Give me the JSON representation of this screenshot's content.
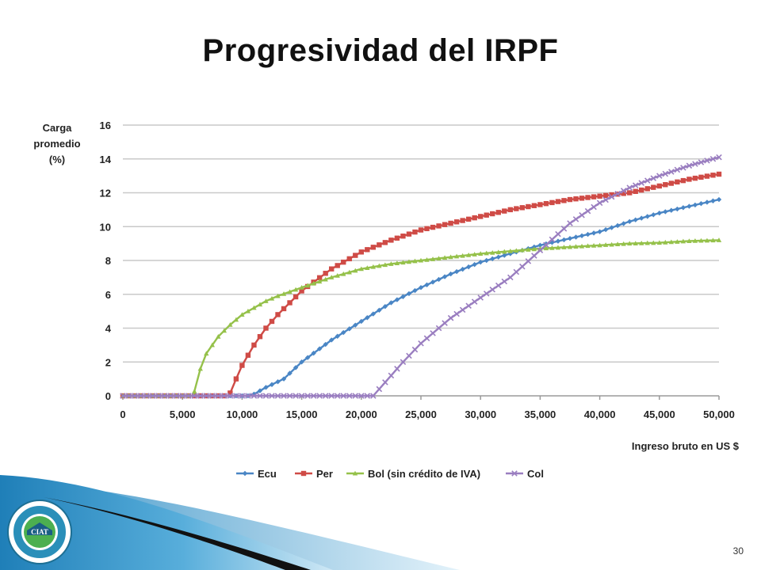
{
  "slide": {
    "title": "Progresividad del IRPF",
    "page_number": "30"
  },
  "chart_data": {
    "type": "line",
    "title": "",
    "ylabel_lines": [
      "Carga",
      "promedio",
      "(%)"
    ],
    "xlabel": "Ingreso bruto en US $",
    "xlim": [
      0,
      50000
    ],
    "ylim": [
      0,
      16
    ],
    "x_ticks": [
      0,
      5000,
      10000,
      15000,
      20000,
      25000,
      30000,
      35000,
      40000,
      45000,
      50000
    ],
    "x_tick_labels": [
      "0",
      "5,000",
      "10,000",
      "15,000",
      "20,000",
      "25,000",
      "30,000",
      "35,000",
      "40,000",
      "45,000",
      "50,000"
    ],
    "y_ticks": [
      0,
      2,
      4,
      6,
      8,
      10,
      12,
      14,
      16
    ],
    "y_tick_labels": [
      "0",
      "2",
      "4",
      "6",
      "8",
      "10",
      "12",
      "14",
      "16"
    ],
    "grid": true,
    "legend_position": "bottom",
    "series": [
      {
        "name": "Ecu",
        "color": "#4a86c5",
        "marker": "diamond",
        "x": [
          0,
          10500,
          11000,
          12000,
          13500,
          15000,
          17500,
          20000,
          22500,
          25000,
          27500,
          30000,
          32500,
          35000,
          37500,
          40000,
          42500,
          45000,
          47500,
          50000
        ],
        "y": [
          0,
          0,
          0.1,
          0.5,
          1.0,
          2.0,
          3.3,
          4.4,
          5.5,
          6.4,
          7.2,
          7.9,
          8.4,
          8.9,
          9.3,
          9.7,
          10.3,
          10.8,
          11.2,
          11.6
        ]
      },
      {
        "name": "Per",
        "color": "#cf4b46",
        "marker": "square",
        "x": [
          0,
          8900,
          9500,
          10000,
          11000,
          12000,
          13000,
          14000,
          15000,
          17500,
          20000,
          22500,
          25000,
          27500,
          30000,
          32500,
          35000,
          37500,
          40000,
          42500,
          45000,
          47500,
          50000
        ],
        "y": [
          0,
          0,
          1.0,
          1.8,
          3.0,
          4.0,
          4.8,
          5.5,
          6.2,
          7.5,
          8.5,
          9.2,
          9.8,
          10.2,
          10.6,
          11.0,
          11.3,
          11.6,
          11.8,
          12.0,
          12.4,
          12.8,
          13.1
        ]
      },
      {
        "name": "Bol (sin crédito de IVA)",
        "color": "#95c14a",
        "marker": "triangle",
        "x": [
          0,
          5900,
          6500,
          7000,
          8000,
          9000,
          10000,
          11000,
          12000,
          13000,
          15000,
          17500,
          20000,
          22500,
          25000,
          27500,
          30000,
          32500,
          35000,
          37500,
          40000,
          42500,
          45000,
          47500,
          50000
        ],
        "y": [
          0,
          0,
          1.6,
          2.5,
          3.5,
          4.2,
          4.8,
          5.2,
          5.6,
          5.9,
          6.4,
          7.0,
          7.5,
          7.8,
          8.0,
          8.2,
          8.4,
          8.55,
          8.7,
          8.8,
          8.9,
          9.0,
          9.05,
          9.15,
          9.2
        ]
      },
      {
        "name": "Col",
        "color": "#9a7ec0",
        "marker": "x",
        "x": [
          0,
          21000,
          22000,
          23500,
          25000,
          27500,
          30000,
          32500,
          35000,
          37500,
          40000,
          42500,
          45000,
          47500,
          50000
        ],
        "y": [
          0,
          0,
          0.8,
          2.0,
          3.1,
          4.6,
          5.8,
          7.0,
          8.6,
          10.2,
          11.4,
          12.3,
          13.0,
          13.6,
          14.1
        ]
      }
    ]
  },
  "footer": {
    "logo_text": "CIAT"
  }
}
